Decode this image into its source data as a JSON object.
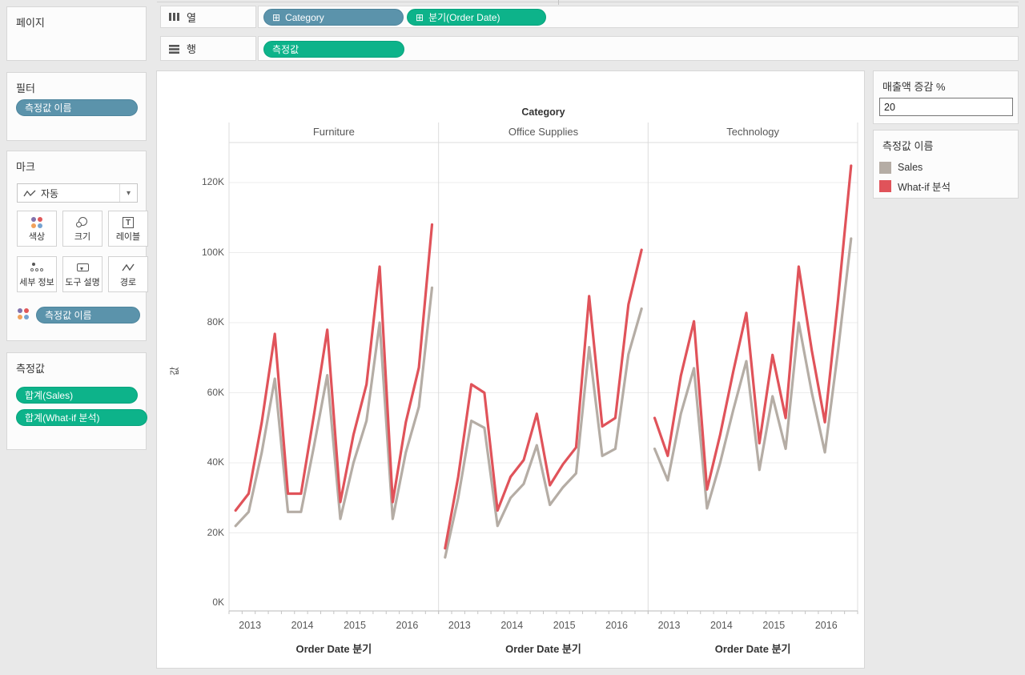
{
  "ui_colors": {
    "pill_blue": "#5b93ab",
    "pill_green": "#0db38a",
    "sales_line": "#b5ada5",
    "whatif_line": "#e0535a",
    "grid_line": "#ececec",
    "axis_line": "#b9b9b9"
  },
  "left_sidebar": {
    "pages_card": {
      "title": "페이지"
    },
    "filters_card": {
      "title": "필터",
      "pills": [
        {
          "label": "측정값 이름",
          "color": "blue"
        }
      ]
    },
    "marks_card": {
      "title": "마크",
      "mark_type_dropdown": {
        "label": "자동",
        "icon": "line-chart-icon",
        "caret": "▾"
      },
      "buttons": [
        {
          "label": "색상",
          "icon": "color-dots-icon"
        },
        {
          "label": "크기",
          "icon": "size-circles-icon"
        },
        {
          "label": "레이블",
          "icon": "text-label-icon"
        },
        {
          "label": "세부 정보",
          "icon": "detail-dots-icon"
        },
        {
          "label": "도구 설명",
          "icon": "tooltip-bubble-icon"
        },
        {
          "label": "경로",
          "icon": "path-line-icon"
        }
      ],
      "pill_rows": [
        {
          "icon": "color-dots-icon",
          "label": "측정값 이름",
          "color": "blue"
        }
      ]
    },
    "measure_values_card": {
      "title": "측정값",
      "pills": [
        {
          "label": "합계(Sales)",
          "color": "green"
        },
        {
          "label": "합계(What-if 분석)",
          "color": "green"
        }
      ]
    }
  },
  "shelves": {
    "columns": {
      "label": "열",
      "pills": [
        {
          "label": "Category",
          "color": "blue",
          "expand_icon": "⊞"
        },
        {
          "label": "분기(Order Date)",
          "color": "green",
          "expand_icon": "⊞"
        }
      ]
    },
    "rows": {
      "label": "행",
      "pills": [
        {
          "label": "측정값",
          "color": "green"
        }
      ]
    }
  },
  "parameter_card": {
    "title": "매출액 증감 %",
    "value": "20"
  },
  "legend_card": {
    "title": "측정값 이름",
    "items": [
      {
        "label": "Sales",
        "color": "#b5ada5"
      },
      {
        "label": "What-if 분석",
        "color": "#e0535a"
      }
    ]
  },
  "chart_data": {
    "type": "line",
    "header": "Category",
    "xlabel": "Order Date 분기",
    "ylabel": "값",
    "units": "values in thousands (K)",
    "grid": "horizontal",
    "legend_position": "right",
    "ylim_k": [
      0,
      133
    ],
    "yticks_k": [
      0,
      20,
      40,
      60,
      80,
      100,
      120
    ],
    "ytick_labels": [
      "0K",
      "20K",
      "40K",
      "60K",
      "80K",
      "100K",
      "120K"
    ],
    "years": [
      "2013",
      "2014",
      "2015",
      "2016"
    ],
    "points_per_panel": 16,
    "series_names": [
      "Sales",
      "What-if 분석"
    ],
    "panels": [
      {
        "label": "Furniture",
        "series": [
          {
            "name": "Sales",
            "values": [
              22,
              26,
              43,
              64,
              26,
              26,
              45,
              65,
              24,
              40,
              52,
              80,
              24,
              43,
              56,
              90
            ]
          },
          {
            "name": "What-if 분석",
            "values": [
              26.4,
              31.2,
              51.6,
              76.8,
              31.2,
              31.2,
              54,
              78,
              28.8,
              48,
              62.4,
              96,
              28.8,
              51.6,
              67.2,
              108
            ]
          }
        ]
      },
      {
        "label": "Office Supplies",
        "series": [
          {
            "name": "Sales",
            "values": [
              13,
              30,
              52,
              50,
              22,
              30,
              34,
              45,
              28,
              33,
              37,
              73,
              42,
              44,
              71,
              84
            ]
          },
          {
            "name": "What-if 분석",
            "values": [
              15.6,
              36,
              62.4,
              60,
              26.4,
              36,
              40.8,
              54,
              33.6,
              39.6,
              44.4,
              87.6,
              50.4,
              52.8,
              85.2,
              100.8
            ]
          }
        ]
      },
      {
        "label": "Technology",
        "series": [
          {
            "name": "Sales",
            "values": [
              44,
              35,
              54,
              67,
              27,
              40,
              55,
              69,
              38,
              59,
              44,
              80,
              60,
              43,
              72,
              104
            ]
          },
          {
            "name": "What-if 분석",
            "values": [
              52.8,
              42,
              64.8,
              80.4,
              32.4,
              48,
              66,
              82.8,
              45.6,
              70.8,
              52.8,
              96,
              72,
              51.6,
              86.4,
              124.8
            ]
          }
        ]
      }
    ]
  }
}
